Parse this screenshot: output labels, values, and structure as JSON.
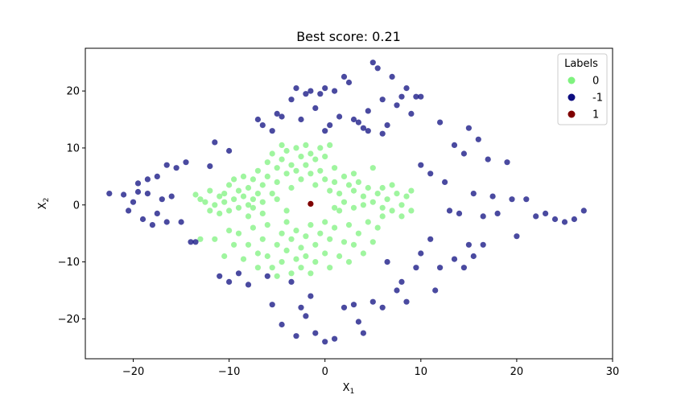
{
  "chart_data": {
    "type": "scatter",
    "title": "Best score: 0.21",
    "xlabel": "X",
    "xlabel_sub": "1",
    "ylabel": "X",
    "ylabel_sub": "2",
    "xlim": [
      -25,
      30
    ],
    "ylim": [
      -27,
      27.5
    ],
    "xticks": [
      -20,
      -10,
      0,
      10,
      20,
      30
    ],
    "yticks": [
      -20,
      -10,
      0,
      10,
      20
    ],
    "xtick_labels": [
      "−20",
      "−10",
      "0",
      "10",
      "20",
      "30"
    ],
    "ytick_labels": [
      "−20",
      "−10",
      "0",
      "10",
      "20"
    ],
    "grid": false,
    "legend": {
      "title": "Labels",
      "placement": "top-right",
      "entries": [
        {
          "label": "0",
          "color": "#7ff27f"
        },
        {
          "label": "-1",
          "color": "#0d0d80"
        },
        {
          "label": "1",
          "color": "#7f0000"
        }
      ]
    },
    "series": [
      {
        "name": "0",
        "color": "#7ff27f",
        "points": [
          [
            -13.5,
            1.8
          ],
          [
            -13,
            1
          ],
          [
            -12.5,
            0.5
          ],
          [
            -12,
            2.5
          ],
          [
            -12,
            -1
          ],
          [
            -11.5,
            0
          ],
          [
            -11,
            1.5
          ],
          [
            -11,
            -1.5
          ],
          [
            -10.5,
            2
          ],
          [
            -10.5,
            0.5
          ],
          [
            -10,
            3.5
          ],
          [
            -10,
            -1
          ],
          [
            -9.5,
            1
          ],
          [
            -9.5,
            4.5
          ],
          [
            -9,
            2.5
          ],
          [
            -9,
            -0.5
          ],
          [
            -8.5,
            5
          ],
          [
            -8.5,
            1.5
          ],
          [
            -8,
            3
          ],
          [
            -8,
            0
          ],
          [
            -8,
            -2
          ],
          [
            -7.5,
            4.5
          ],
          [
            -7.5,
            1
          ],
          [
            -7,
            2
          ],
          [
            -7,
            6
          ],
          [
            -6.5,
            3.5
          ],
          [
            -6.5,
            0.5
          ],
          [
            -6,
            5
          ],
          [
            -6,
            7.5
          ],
          [
            -5.5,
            2
          ],
          [
            -5.5,
            9
          ],
          [
            -5,
            6.5
          ],
          [
            -5,
            4
          ],
          [
            -4.5,
            10.5
          ],
          [
            -4.5,
            8
          ],
          [
            -4,
            5.5
          ],
          [
            -4,
            9.5
          ],
          [
            -3.5,
            7
          ],
          [
            -3.5,
            3
          ],
          [
            -3,
            10
          ],
          [
            -3,
            6
          ],
          [
            -2.5,
            8.5
          ],
          [
            -2.5,
            4.5
          ],
          [
            -2,
            10.5
          ],
          [
            -2,
            7
          ],
          [
            -1.5,
            9
          ],
          [
            -1.5,
            5.5
          ],
          [
            -1,
            3.5
          ],
          [
            -1,
            8
          ],
          [
            -0.5,
            10
          ],
          [
            -0.5,
            6
          ],
          [
            0,
            4.5
          ],
          [
            0,
            8.5
          ],
          [
            0.5,
            2.5
          ],
          [
            0.5,
            10.5
          ],
          [
            1,
            6.5
          ],
          [
            1,
            4
          ],
          [
            1.5,
            2
          ],
          [
            2,
            5
          ],
          [
            2.5,
            3.5
          ],
          [
            3,
            5.5
          ],
          [
            3,
            2.5
          ],
          [
            3.5,
            4
          ],
          [
            4,
            1.5
          ],
          [
            4.5,
            3
          ],
          [
            5,
            6.5
          ],
          [
            5,
            0.5
          ],
          [
            5.5,
            2
          ],
          [
            6,
            -0.5
          ],
          [
            6,
            3
          ],
          [
            6.5,
            1
          ],
          [
            7,
            -1
          ],
          [
            7,
            3.5
          ],
          [
            7.5,
            2
          ],
          [
            8,
            0
          ],
          [
            8,
            -2
          ],
          [
            8.5,
            1.5
          ],
          [
            9,
            -1
          ],
          [
            9,
            2.5
          ],
          [
            -13,
            -6
          ],
          [
            -11.5,
            -6
          ],
          [
            -10.5,
            -9
          ],
          [
            -10,
            -4.5
          ],
          [
            -9.5,
            -7
          ],
          [
            -9,
            -5
          ],
          [
            -8.5,
            -9.5
          ],
          [
            -8,
            -7
          ],
          [
            -7.5,
            -4
          ],
          [
            -7,
            -8.5
          ],
          [
            -7,
            -11
          ],
          [
            -6.5,
            -6
          ],
          [
            -6,
            -9
          ],
          [
            -6,
            -3.5
          ],
          [
            -5.5,
            -11
          ],
          [
            -5,
            -7
          ],
          [
            -5,
            -12.5
          ],
          [
            -4.5,
            -5
          ],
          [
            -4.5,
            -10
          ],
          [
            -4,
            -8
          ],
          [
            -4,
            -3
          ],
          [
            -3.5,
            -12
          ],
          [
            -3.5,
            -6
          ],
          [
            -3,
            -9.5
          ],
          [
            -3,
            -4.5
          ],
          [
            -2.5,
            -7.5
          ],
          [
            -2.5,
            -11
          ],
          [
            -2,
            -5.5
          ],
          [
            -2,
            -9
          ],
          [
            -1.5,
            -3.5
          ],
          [
            -1.5,
            -12
          ],
          [
            -1,
            -7
          ],
          [
            -1,
            -10
          ],
          [
            -0.5,
            -5
          ],
          [
            0,
            -8.5
          ],
          [
            0,
            -3
          ],
          [
            0.5,
            -11
          ],
          [
            0.5,
            -6
          ],
          [
            1,
            -4
          ],
          [
            1.5,
            -9
          ],
          [
            2,
            -6.5
          ],
          [
            2.5,
            -3.5
          ],
          [
            2.5,
            -10
          ],
          [
            3,
            -7
          ],
          [
            3.5,
            -5
          ],
          [
            4,
            -8.5
          ],
          [
            4.5,
            -3
          ],
          [
            5,
            -6.5
          ],
          [
            5.5,
            -4
          ],
          [
            6,
            -2
          ],
          [
            -5,
            1
          ],
          [
            -4,
            -1
          ],
          [
            1,
            -0.5
          ],
          [
            1.5,
            -1
          ],
          [
            2,
            0.5
          ],
          [
            3,
            -0.5
          ],
          [
            4,
            0
          ],
          [
            -6.5,
            -1.5
          ],
          [
            -7.5,
            -0.5
          ]
        ]
      },
      {
        "name": "-1",
        "color": "#0d0d80",
        "points": [
          [
            -22.5,
            2
          ],
          [
            -21,
            1.8
          ],
          [
            -19.5,
            2.3
          ],
          [
            -18.5,
            2
          ],
          [
            -17,
            1
          ],
          [
            -20,
            0.5
          ],
          [
            -19,
            -2.5
          ],
          [
            -16,
            1.5
          ],
          [
            -20.5,
            -1
          ],
          [
            -18,
            -3.5
          ],
          [
            -16.5,
            -3
          ],
          [
            -17.5,
            -1.5
          ],
          [
            -15,
            -3
          ],
          [
            -19.5,
            3.8
          ],
          [
            -18.5,
            4.5
          ],
          [
            -17.5,
            5
          ],
          [
            -16.5,
            7
          ],
          [
            -15.5,
            6.5
          ],
          [
            -14.5,
            7.5
          ],
          [
            -14,
            -6.5
          ],
          [
            -12,
            6.8
          ],
          [
            -11.5,
            11
          ],
          [
            -10,
            9.5
          ],
          [
            -9,
            -12
          ],
          [
            -8,
            -14
          ],
          [
            -7,
            15
          ],
          [
            -6.5,
            14
          ],
          [
            -6,
            -12.5
          ],
          [
            -5.5,
            13
          ],
          [
            -5,
            16
          ],
          [
            -4.5,
            15.5
          ],
          [
            -3.5,
            18.5
          ],
          [
            -3,
            20.5
          ],
          [
            -2.5,
            15
          ],
          [
            -2,
            19.5
          ],
          [
            -1.5,
            20
          ],
          [
            -1,
            17
          ],
          [
            -0.5,
            19.5
          ],
          [
            0,
            13
          ],
          [
            0,
            20.5
          ],
          [
            0.5,
            14
          ],
          [
            1,
            20
          ],
          [
            1.5,
            15.5
          ],
          [
            2,
            22.5
          ],
          [
            2.5,
            21.5
          ],
          [
            3,
            15
          ],
          [
            3.5,
            14.5
          ],
          [
            4,
            13.5
          ],
          [
            4.5,
            13
          ],
          [
            4.5,
            16.5
          ],
          [
            5,
            25
          ],
          [
            5.5,
            24
          ],
          [
            6,
            18.5
          ],
          [
            6,
            12.5
          ],
          [
            6.5,
            14
          ],
          [
            7,
            22.5
          ],
          [
            7.5,
            17.5
          ],
          [
            8,
            19
          ],
          [
            8.5,
            20.5
          ],
          [
            9,
            16
          ],
          [
            9.5,
            19
          ],
          [
            10,
            19
          ],
          [
            10,
            7
          ],
          [
            11,
            5.5
          ],
          [
            12,
            14.5
          ],
          [
            12.5,
            4
          ],
          [
            13,
            -1
          ],
          [
            13.5,
            10.5
          ],
          [
            14,
            -1.5
          ],
          [
            14.5,
            9
          ],
          [
            15,
            13.5
          ],
          [
            15.5,
            2
          ],
          [
            16,
            11.5
          ],
          [
            16.5,
            -2
          ],
          [
            17,
            8
          ],
          [
            17.5,
            1.5
          ],
          [
            18,
            -1.5
          ],
          [
            19,
            7.5
          ],
          [
            19.5,
            1
          ],
          [
            20,
            -5.5
          ],
          [
            21,
            1
          ],
          [
            22,
            -2
          ],
          [
            23,
            -1.5
          ],
          [
            24,
            -2.5
          ],
          [
            25,
            -3
          ],
          [
            26,
            -2.5
          ],
          [
            27,
            -1
          ],
          [
            -13.5,
            -6.5
          ],
          [
            -5.5,
            -17.5
          ],
          [
            -4.5,
            -21
          ],
          [
            -3,
            -23
          ],
          [
            -2,
            -19.5
          ],
          [
            -1,
            -22.5
          ],
          [
            0,
            -24
          ],
          [
            1,
            -23.5
          ],
          [
            -3.5,
            -13.5
          ],
          [
            -2.5,
            -18
          ],
          [
            -1.5,
            -16
          ],
          [
            3.5,
            -20.5
          ],
          [
            4,
            -22.5
          ],
          [
            5,
            -17
          ],
          [
            6,
            -18
          ],
          [
            7.5,
            -15
          ],
          [
            8.5,
            -17
          ],
          [
            9.5,
            -11
          ],
          [
            10,
            -8.5
          ],
          [
            11,
            -6
          ],
          [
            11.5,
            -15
          ],
          [
            12,
            -11
          ],
          [
            13.5,
            -9.5
          ],
          [
            14.5,
            -11
          ],
          [
            15,
            -7
          ],
          [
            15.5,
            -9
          ],
          [
            16.5,
            -7
          ],
          [
            8,
            -13.5
          ],
          [
            6.5,
            -10
          ],
          [
            2,
            -18
          ],
          [
            3,
            -17.5
          ],
          [
            -11,
            -12.5
          ],
          [
            -10,
            -13.5
          ]
        ]
      },
      {
        "name": "1",
        "color": "#7f0000",
        "points": [
          [
            -1.5,
            0.2
          ]
        ]
      }
    ]
  }
}
